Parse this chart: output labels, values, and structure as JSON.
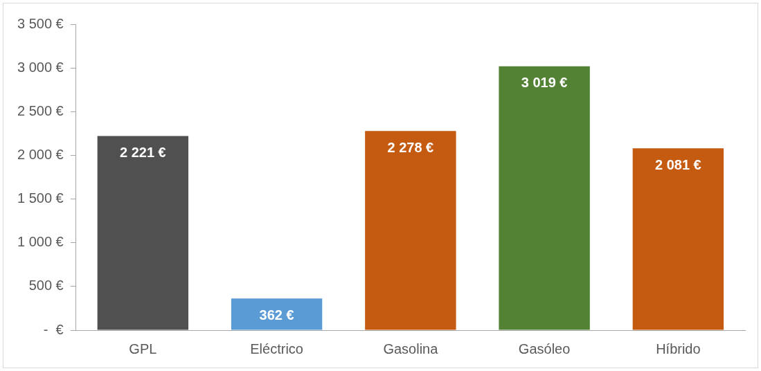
{
  "chart_data": {
    "type": "bar",
    "categories": [
      "GPL",
      "Eléctrico",
      "Gasolina",
      "Gasóleo",
      "Híbrido"
    ],
    "values": [
      2221,
      362,
      2278,
      3019,
      2081
    ],
    "colors": [
      "#505050",
      "#5b9bd5",
      "#c55a11",
      "#548235",
      "#c55a11"
    ],
    "value_labels": [
      "2 221 €",
      "362 €",
      "2 278 €",
      "3 019 €",
      "2 081 €"
    ],
    "ylim": [
      0,
      3500
    ],
    "yticks": [
      {
        "value": 0,
        "label": "-  €"
      },
      {
        "value": 500,
        "label": "500 €"
      },
      {
        "value": 1000,
        "label": "1 000 €"
      },
      {
        "value": 1500,
        "label": "1 500 €"
      },
      {
        "value": 2000,
        "label": "2 000 €"
      },
      {
        "value": 2500,
        "label": "2 500 €"
      },
      {
        "value": 3000,
        "label": "3 000 €"
      },
      {
        "value": 3500,
        "label": "3 500 €"
      }
    ],
    "grid": false,
    "legend": false
  }
}
